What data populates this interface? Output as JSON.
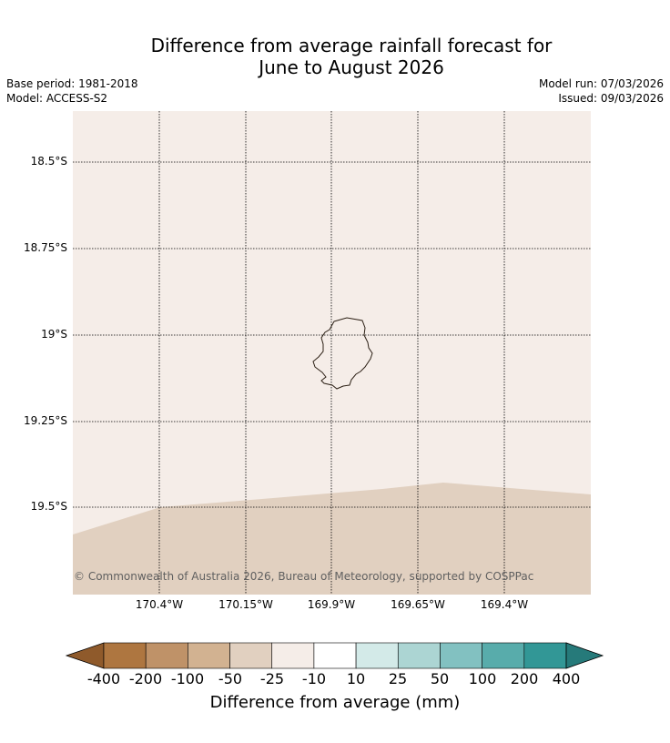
{
  "title": {
    "line1": "Difference from average rainfall forecast for",
    "line2": "June to August 2026"
  },
  "meta": {
    "base_period": "Base period: 1981-2018",
    "model": "Model: ACCESS-S2",
    "model_run": "Model run: 07/03/2026",
    "issued": "Issued: 09/03/2026"
  },
  "map": {
    "latitude_labels": [
      "18.5°S",
      "18.75°S",
      "19°S",
      "19.25°S",
      "19.5°S"
    ],
    "longitude_labels": [
      "170.4°W",
      "170.15°W",
      "169.9°W",
      "169.65°W",
      "169.4°W"
    ],
    "region_colors": {
      "upper": "#f5ede8",
      "lower": "#e1d0c0"
    },
    "copyright": "© Commonwealth of Australia 2026, Bureau of Meteorology, supported by COSPPac"
  },
  "colorbar": {
    "ticks": [
      "-400",
      "-200",
      "-100",
      "-50",
      "-25",
      "-10",
      "10",
      "25",
      "50",
      "100",
      "200",
      "400"
    ],
    "colors": [
      "#8f5a2b",
      "#ae7640",
      "#bf9268",
      "#d2b291",
      "#e1d0c0",
      "#f5ede8",
      "#ffffff",
      "#d3eae8",
      "#acd5d3",
      "#82c1c1",
      "#58acab",
      "#329796",
      "#267a7a"
    ],
    "label": "Difference from average (mm)"
  }
}
